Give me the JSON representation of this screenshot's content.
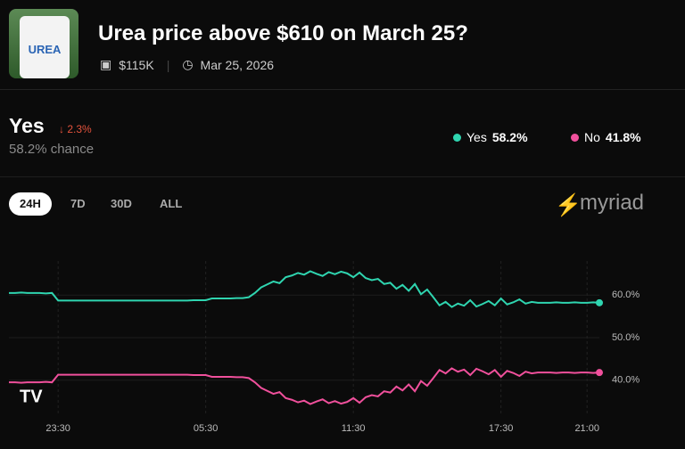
{
  "header": {
    "image_text": "UREA",
    "title": "Urea price above $610 on March 25?",
    "volume": "$115K",
    "date": "Mar 25, 2026"
  },
  "outcome": {
    "name": "Yes",
    "change": "2.3%",
    "chance": "58.2% chance"
  },
  "legend": [
    {
      "name": "Yes",
      "value": "58.2%"
    },
    {
      "name": "No",
      "value": "41.8%"
    }
  ],
  "tabs": [
    "24H",
    "7D",
    "30D",
    "ALL"
  ],
  "brand": "myriad",
  "chart_data": {
    "type": "line",
    "categories": [
      null,
      null,
      null,
      null,
      null,
      null,
      null,
      null,
      "23:30",
      null,
      null,
      null,
      null,
      null,
      null,
      null,
      null,
      null,
      null,
      null,
      null,
      null,
      null,
      null,
      null,
      null,
      null,
      null,
      null,
      null,
      null,
      null,
      "05:30",
      null,
      null,
      null,
      null,
      null,
      null,
      null,
      null,
      null,
      null,
      null,
      null,
      null,
      null,
      null,
      null,
      null,
      null,
      null,
      null,
      null,
      null,
      null,
      "11:30",
      null,
      null,
      null,
      null,
      null,
      null,
      null,
      null,
      null,
      null,
      null,
      null,
      null,
      null,
      null,
      null,
      null,
      null,
      null,
      null,
      null,
      null,
      null,
      "17:30",
      null,
      null,
      null,
      null,
      null,
      null,
      null,
      null,
      null,
      null,
      null,
      null,
      null,
      "21:00",
      null,
      null
    ],
    "series": [
      {
        "name": "Yes",
        "color": "#2fd5b0",
        "values": [
          60.5,
          60.5,
          60.6,
          60.5,
          60.5,
          60.5,
          60.4,
          60.5,
          58.7,
          58.7,
          58.7,
          58.7,
          58.7,
          58.7,
          58.7,
          58.7,
          58.7,
          58.7,
          58.7,
          58.7,
          58.7,
          58.7,
          58.7,
          58.7,
          58.7,
          58.7,
          58.7,
          58.7,
          58.7,
          58.7,
          58.8,
          58.8,
          58.8,
          59.2,
          59.2,
          59.2,
          59.2,
          59.3,
          59.3,
          59.5,
          60.5,
          61.8,
          62.5,
          63.2,
          62.8,
          64.2,
          64.6,
          65.2,
          64.8,
          65.6,
          65.0,
          64.5,
          65.4,
          64.9,
          65.5,
          65.1,
          64.2,
          65.3,
          64.0,
          63.5,
          63.8,
          62.6,
          62.9,
          61.5,
          62.4,
          61.0,
          62.6,
          60.2,
          61.3,
          59.5,
          57.6,
          58.4,
          57.2,
          58.0,
          57.5,
          58.8,
          57.3,
          57.9,
          58.6,
          57.6,
          59.2,
          57.8,
          58.3,
          59.0,
          58.0,
          58.4,
          58.2,
          58.2,
          58.2,
          58.3,
          58.2,
          58.2,
          58.3,
          58.2,
          58.2,
          58.3,
          58.2
        ]
      },
      {
        "name": "No",
        "color": "#f0509c",
        "values": [
          39.5,
          39.5,
          39.4,
          39.5,
          39.5,
          39.5,
          39.6,
          39.5,
          41.3,
          41.3,
          41.3,
          41.3,
          41.3,
          41.3,
          41.3,
          41.3,
          41.3,
          41.3,
          41.3,
          41.3,
          41.3,
          41.3,
          41.3,
          41.3,
          41.3,
          41.3,
          41.3,
          41.3,
          41.3,
          41.3,
          41.2,
          41.2,
          41.2,
          40.8,
          40.8,
          40.8,
          40.8,
          40.7,
          40.7,
          40.5,
          39.5,
          38.2,
          37.5,
          36.8,
          37.2,
          35.8,
          35.4,
          34.8,
          35.2,
          34.4,
          35.0,
          35.5,
          34.6,
          35.1,
          34.5,
          34.9,
          35.8,
          34.7,
          36.0,
          36.5,
          36.2,
          37.4,
          37.1,
          38.5,
          37.6,
          39.0,
          37.4,
          39.8,
          38.7,
          40.5,
          42.4,
          41.6,
          42.8,
          42.0,
          42.5,
          41.2,
          42.7,
          42.1,
          41.4,
          42.4,
          40.8,
          42.2,
          41.7,
          41.0,
          42.0,
          41.6,
          41.8,
          41.8,
          41.8,
          41.7,
          41.8,
          41.8,
          41.7,
          41.8,
          41.8,
          41.7,
          41.8
        ]
      }
    ],
    "ylim": [
      32,
      68
    ],
    "yticks": [
      {
        "value": 40,
        "label": "40.0%"
      },
      {
        "value": 50,
        "label": "50.0%"
      },
      {
        "value": 60,
        "label": "60.0%"
      }
    ],
    "grid": true
  }
}
